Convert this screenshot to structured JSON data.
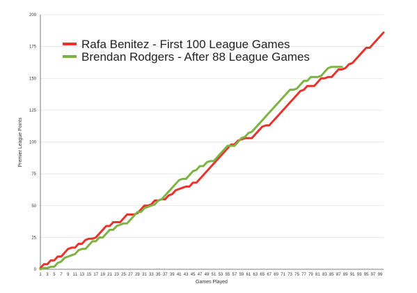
{
  "chart_data": {
    "type": "line",
    "xlabel": "Games Played",
    "ylabel": "Premier League Points",
    "xlim": [
      1,
      100
    ],
    "ylim": [
      0,
      200
    ],
    "y_ticks": [
      0,
      25,
      50,
      75,
      100,
      125,
      150,
      175,
      200
    ],
    "x_tick_labels": [
      1,
      3,
      5,
      7,
      9,
      11,
      13,
      15,
      17,
      19,
      21,
      23,
      25,
      27,
      29,
      31,
      33,
      35,
      37,
      39,
      41,
      43,
      45,
      47,
      49,
      51,
      53,
      55,
      57,
      59,
      61,
      63,
      65,
      67,
      69,
      71,
      73,
      75,
      77,
      79,
      81,
      83,
      85,
      87,
      89,
      91,
      93,
      95,
      97,
      99
    ],
    "grid": "horizontal",
    "legend_position": "top-left",
    "series": [
      {
        "name": "Rafa Benitez -  First 100 League Games",
        "color": "#e8322b",
        "points": [
          [
            1,
            1
          ],
          [
            2,
            4
          ],
          [
            3,
            4
          ],
          [
            4,
            7
          ],
          [
            5,
            7
          ],
          [
            6,
            10
          ],
          [
            7,
            10
          ],
          [
            8,
            13
          ],
          [
            9,
            16
          ],
          [
            10,
            17
          ],
          [
            11,
            17
          ],
          [
            12,
            20
          ],
          [
            13,
            20
          ],
          [
            14,
            23
          ],
          [
            15,
            24
          ],
          [
            16,
            24
          ],
          [
            17,
            25
          ],
          [
            18,
            28
          ],
          [
            19,
            31
          ],
          [
            20,
            34
          ],
          [
            21,
            34
          ],
          [
            22,
            37
          ],
          [
            23,
            37
          ],
          [
            24,
            37
          ],
          [
            25,
            40
          ],
          [
            26,
            43
          ],
          [
            27,
            43
          ],
          [
            28,
            43
          ],
          [
            29,
            44
          ],
          [
            30,
            47
          ],
          [
            31,
            50
          ],
          [
            32,
            50
          ],
          [
            33,
            51
          ],
          [
            34,
            54
          ],
          [
            35,
            54
          ],
          [
            36,
            55
          ],
          [
            37,
            55
          ],
          [
            38,
            58
          ],
          [
            39,
            59
          ],
          [
            40,
            62
          ],
          [
            41,
            63
          ],
          [
            42,
            64
          ],
          [
            43,
            65
          ],
          [
            44,
            65
          ],
          [
            45,
            68
          ],
          [
            46,
            68
          ],
          [
            47,
            71
          ],
          [
            48,
            74
          ],
          [
            49,
            77
          ],
          [
            50,
            80
          ],
          [
            51,
            83
          ],
          [
            52,
            86
          ],
          [
            53,
            89
          ],
          [
            54,
            92
          ],
          [
            55,
            95
          ],
          [
            56,
            98
          ],
          [
            57,
            98
          ],
          [
            58,
            101
          ],
          [
            59,
            102
          ],
          [
            60,
            103
          ],
          [
            61,
            103
          ],
          [
            62,
            103
          ],
          [
            63,
            106
          ],
          [
            64,
            109
          ],
          [
            65,
            112
          ],
          [
            66,
            113
          ],
          [
            67,
            113
          ],
          [
            68,
            116
          ],
          [
            69,
            119
          ],
          [
            70,
            122
          ],
          [
            71,
            125
          ],
          [
            72,
            128
          ],
          [
            73,
            131
          ],
          [
            74,
            134
          ],
          [
            75,
            137
          ],
          [
            76,
            140
          ],
          [
            77,
            141
          ],
          [
            78,
            144
          ],
          [
            79,
            144
          ],
          [
            80,
            144
          ],
          [
            81,
            147
          ],
          [
            82,
            150
          ],
          [
            83,
            150
          ],
          [
            84,
            151
          ],
          [
            85,
            151
          ],
          [
            86,
            154
          ],
          [
            87,
            157
          ],
          [
            88,
            157
          ],
          [
            89,
            158
          ],
          [
            90,
            161
          ],
          [
            91,
            162
          ],
          [
            92,
            165
          ],
          [
            93,
            168
          ],
          [
            94,
            171
          ],
          [
            95,
            174
          ],
          [
            96,
            174
          ],
          [
            97,
            177
          ],
          [
            98,
            180
          ],
          [
            99,
            183
          ],
          [
            100,
            186
          ]
        ]
      },
      {
        "name": "Brendan Rodgers - After 88 League Games",
        "color": "#7cb342",
        "points": [
          [
            1,
            0
          ],
          [
            2,
            1
          ],
          [
            3,
            1
          ],
          [
            4,
            2
          ],
          [
            5,
            2
          ],
          [
            6,
            5
          ],
          [
            7,
            6
          ],
          [
            8,
            9
          ],
          [
            9,
            10
          ],
          [
            10,
            11
          ],
          [
            11,
            12
          ],
          [
            12,
            15
          ],
          [
            13,
            16
          ],
          [
            14,
            16
          ],
          [
            15,
            19
          ],
          [
            16,
            22
          ],
          [
            17,
            22
          ],
          [
            18,
            25
          ],
          [
            19,
            25
          ],
          [
            20,
            28
          ],
          [
            21,
            31
          ],
          [
            22,
            31
          ],
          [
            23,
            34
          ],
          [
            24,
            35
          ],
          [
            25,
            36
          ],
          [
            26,
            36
          ],
          [
            27,
            39
          ],
          [
            28,
            42
          ],
          [
            29,
            45
          ],
          [
            30,
            45
          ],
          [
            31,
            48
          ],
          [
            32,
            49
          ],
          [
            33,
            50
          ],
          [
            34,
            51
          ],
          [
            35,
            54
          ],
          [
            36,
            55
          ],
          [
            37,
            58
          ],
          [
            38,
            61
          ],
          [
            39,
            64
          ],
          [
            40,
            67
          ],
          [
            41,
            70
          ],
          [
            42,
            71
          ],
          [
            43,
            71
          ],
          [
            44,
            74
          ],
          [
            45,
            77
          ],
          [
            46,
            78
          ],
          [
            47,
            81
          ],
          [
            48,
            81
          ],
          [
            49,
            84
          ],
          [
            50,
            85
          ],
          [
            51,
            85
          ],
          [
            52,
            88
          ],
          [
            53,
            91
          ],
          [
            54,
            94
          ],
          [
            55,
            97
          ],
          [
            56,
            97
          ],
          [
            57,
            97
          ],
          [
            58,
            100
          ],
          [
            59,
            103
          ],
          [
            60,
            104
          ],
          [
            61,
            107
          ],
          [
            62,
            108
          ],
          [
            63,
            111
          ],
          [
            64,
            114
          ],
          [
            65,
            117
          ],
          [
            66,
            120
          ],
          [
            67,
            123
          ],
          [
            68,
            126
          ],
          [
            69,
            129
          ],
          [
            70,
            132
          ],
          [
            71,
            135
          ],
          [
            72,
            138
          ],
          [
            73,
            141
          ],
          [
            74,
            141
          ],
          [
            75,
            142
          ],
          [
            76,
            145
          ],
          [
            77,
            148
          ],
          [
            78,
            148
          ],
          [
            79,
            151
          ],
          [
            80,
            151
          ],
          [
            81,
            151
          ],
          [
            82,
            152
          ],
          [
            83,
            155
          ],
          [
            84,
            158
          ],
          [
            85,
            159
          ],
          [
            86,
            159
          ],
          [
            87,
            159
          ],
          [
            88,
            159
          ]
        ]
      }
    ]
  }
}
